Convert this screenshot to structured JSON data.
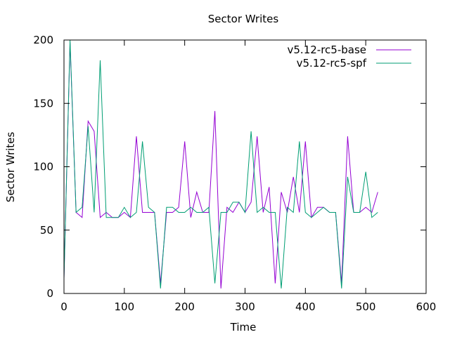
{
  "chart_data": {
    "type": "line",
    "title": "Sector Writes",
    "xlabel": "Time",
    "ylabel": "Sector Writes",
    "xlim": [
      0,
      600
    ],
    "ylim": [
      0,
      200
    ],
    "xticks": [
      0,
      100,
      200,
      300,
      400,
      500,
      600
    ],
    "yticks": [
      0,
      50,
      100,
      150,
      200
    ],
    "xtick_labels": [
      "0",
      "100",
      "200",
      "300",
      "400",
      "500",
      "600"
    ],
    "ytick_labels": [
      "0",
      "50",
      "100",
      "150",
      "200"
    ],
    "grid": false,
    "legend_position": "top-right",
    "series": [
      {
        "name": "v5.12-rc5-base",
        "color": "#9400d3",
        "x": [
          0,
          10,
          20,
          30,
          40,
          50,
          60,
          70,
          80,
          90,
          100,
          110,
          120,
          130,
          140,
          150,
          160,
          170,
          180,
          190,
          200,
          210,
          220,
          230,
          240,
          250,
          260,
          270,
          280,
          290,
          300,
          310,
          320,
          330,
          340,
          350,
          360,
          370,
          380,
          390,
          400,
          410,
          420,
          430,
          440,
          450,
          460,
          470,
          480,
          490,
          500,
          510,
          520
        ],
        "y": [
          12,
          198,
          64,
          60,
          136,
          128,
          60,
          64,
          60,
          60,
          64,
          60,
          124,
          64,
          64,
          64,
          8,
          64,
          64,
          68,
          120,
          60,
          80,
          64,
          64,
          144,
          4,
          68,
          64,
          72,
          64,
          72,
          124,
          64,
          84,
          8,
          80,
          64,
          92,
          64,
          120,
          60,
          68,
          68,
          64,
          64,
          8,
          124,
          64,
          64,
          68,
          64,
          80
        ]
      },
      {
        "name": "v5.12-rc5-spf",
        "color": "#009e73",
        "x": [
          0,
          10,
          20,
          30,
          40,
          50,
          60,
          70,
          80,
          90,
          100,
          110,
          120,
          130,
          140,
          150,
          160,
          170,
          180,
          190,
          200,
          210,
          220,
          230,
          240,
          250,
          260,
          270,
          280,
          290,
          300,
          310,
          320,
          330,
          340,
          350,
          360,
          370,
          380,
          390,
          400,
          410,
          420,
          430,
          440,
          450,
          460,
          470,
          480,
          490,
          500,
          510,
          520
        ],
        "y": [
          12,
          200,
          64,
          68,
          132,
          64,
          184,
          60,
          60,
          60,
          68,
          60,
          64,
          120,
          68,
          64,
          4,
          68,
          68,
          64,
          64,
          68,
          64,
          64,
          68,
          8,
          64,
          64,
          72,
          72,
          64,
          128,
          64,
          68,
          64,
          64,
          4,
          68,
          64,
          120,
          64,
          60,
          64,
          68,
          64,
          64,
          4,
          92,
          64,
          64,
          96,
          60,
          64
        ]
      }
    ]
  }
}
